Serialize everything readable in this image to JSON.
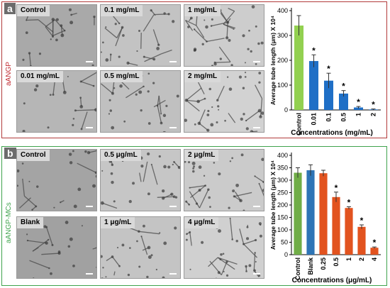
{
  "panel_a": {
    "letter": "a",
    "side_label": "aANGP",
    "images": [
      {
        "label": "Control"
      },
      {
        "label": "0.1 mg/mL"
      },
      {
        "label": "1 mg/mL"
      },
      {
        "label": "0.01 mg/mL"
      },
      {
        "label": "0.5 mg/mL"
      },
      {
        "label": "2 mg/mL"
      }
    ]
  },
  "panel_b": {
    "letter": "b",
    "side_label": "aANGP-MCs",
    "images": [
      {
        "label": "Control"
      },
      {
        "label": "0.5 μg/mL"
      },
      {
        "label": "2 μg/mL"
      },
      {
        "label": "Blank"
      },
      {
        "label": "1 μg/mL"
      },
      {
        "label": "4 μg/mL"
      }
    ]
  },
  "chart_data": [
    {
      "type": "bar",
      "categories": [
        "Control",
        "0.01",
        "0.1",
        "0.5",
        "1",
        "2"
      ],
      "values": [
        340,
        197,
        118,
        66,
        10,
        2
      ],
      "errors": [
        40,
        25,
        30,
        12,
        4,
        2
      ],
      "significance": [
        "",
        "*",
        "*",
        "*",
        "*",
        "*"
      ],
      "colors": [
        "#92d050",
        "#1f6fc6",
        "#1f6fc6",
        "#1f6fc6",
        "#1f6fc6",
        "#1f6fc6"
      ],
      "ylabel": "Average tube length (μm) X 10⁴",
      "xlabel": "Concentrations (mg/mL)",
      "ylim": [
        0,
        400
      ],
      "yticks": [
        "0",
        "100",
        "200",
        "300",
        "400"
      ]
    },
    {
      "type": "bar",
      "categories": [
        "Control",
        "Blank",
        "0.25",
        "0.5",
        "1",
        "2",
        "4"
      ],
      "values": [
        330,
        340,
        328,
        232,
        188,
        112,
        28
      ],
      "errors": [
        20,
        22,
        12,
        20,
        5,
        8,
        3
      ],
      "significance": [
        "",
        "",
        "",
        "*",
        "*",
        "*",
        "*"
      ],
      "colors": [
        "#70ad47",
        "#2e75b6",
        "#e2531f",
        "#e2531f",
        "#e2531f",
        "#e2531f",
        "#e2531f"
      ],
      "ylabel": "Average tube length (μm) X 10⁴",
      "xlabel": "Concentrations (μg/mL)",
      "ylim": [
        0,
        400
      ],
      "yticks": [
        "0",
        "50",
        "100",
        "150",
        "200",
        "250",
        "300",
        "350",
        "400"
      ]
    }
  ]
}
